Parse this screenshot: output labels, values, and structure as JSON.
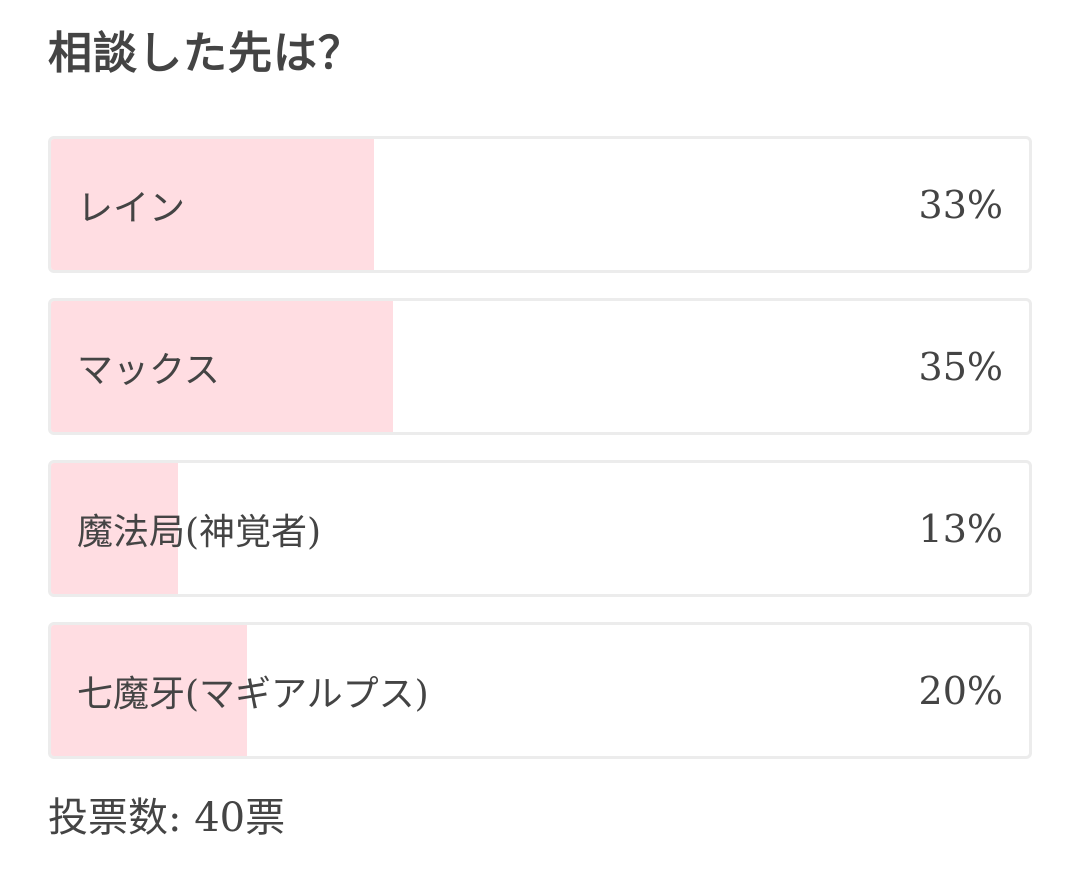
{
  "poll": {
    "title": "相談した先は？",
    "options": [
      {
        "label": "レイン",
        "percent_text": "33%",
        "share": 0.33
      },
      {
        "label": "マックス",
        "percent_text": "35%",
        "share": 0.35
      },
      {
        "label": "魔法局(神覚者)",
        "percent_text": "13%",
        "share": 0.13
      },
      {
        "label": "七魔牙(マギアルプス)",
        "percent_text": "20%",
        "share": 0.2
      }
    ],
    "vote_count": "投票数: 40票"
  },
  "colors": {
    "bar_fill": "#ffdde2",
    "border": "#ececec",
    "text": "#444444"
  }
}
